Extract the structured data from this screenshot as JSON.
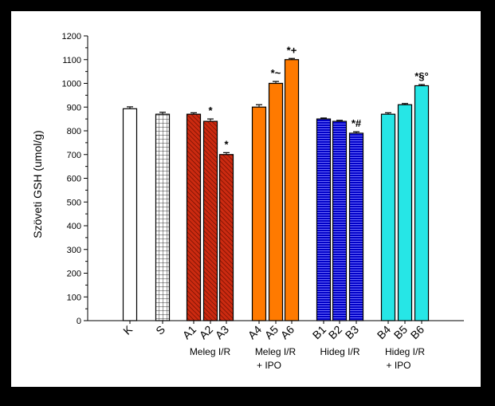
{
  "chart_data": {
    "type": "bar",
    "ylabel": "Szöveti GSH (umol/g)",
    "ylim": [
      0,
      1200
    ],
    "yticks": [
      0,
      100,
      200,
      300,
      400,
      500,
      600,
      700,
      800,
      900,
      1000,
      1100,
      1200
    ],
    "categories": [
      "K",
      "S",
      "A1",
      "A2",
      "A3",
      "A4",
      "A5",
      "A6",
      "B1",
      "B2",
      "B3",
      "B4",
      "B5",
      "B6"
    ],
    "values": [
      893,
      870,
      870,
      840,
      700,
      900,
      1000,
      1100,
      850,
      840,
      790,
      870,
      910,
      990
    ],
    "errors": [
      8,
      8,
      6,
      10,
      8,
      10,
      8,
      5,
      4,
      4,
      6,
      6,
      5,
      5
    ],
    "fills": [
      "white",
      "grid",
      "red-hatch",
      "red-hatch",
      "red-hatch",
      "orange",
      "orange",
      "orange",
      "blue-lines",
      "blue-lines",
      "blue-lines",
      "cyan",
      "cyan",
      "cyan"
    ],
    "annotations": [
      "",
      "",
      "",
      "*",
      "*",
      "",
      "*~",
      "*+",
      "",
      "",
      "*#",
      "",
      "",
      "*§°"
    ],
    "group_labels": [
      {
        "lines": [
          "Meleg I/R"
        ],
        "from": 2,
        "to": 4
      },
      {
        "lines": [
          "Meleg I/R",
          "+ IPO"
        ],
        "from": 5,
        "to": 7
      },
      {
        "lines": [
          "Hideg I/R"
        ],
        "from": 8,
        "to": 10
      },
      {
        "lines": [
          "Hideg I/R",
          "+ IPO"
        ],
        "from": 11,
        "to": 13
      }
    ],
    "colors": {
      "red": "#cc2a10",
      "orange": "#ff7a00",
      "blue": "#0000c8",
      "cyan": "#26e6e6"
    }
  }
}
